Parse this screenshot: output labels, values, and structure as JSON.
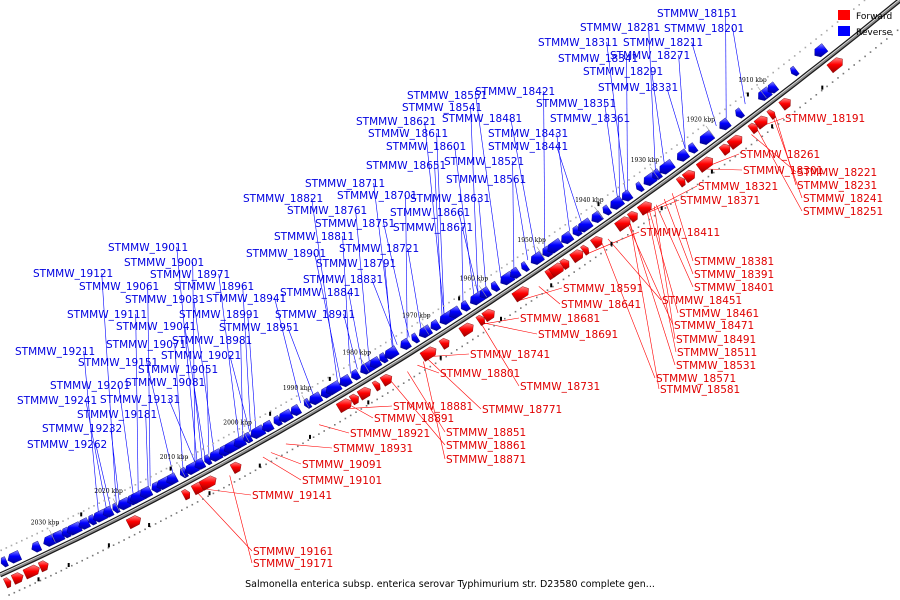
{
  "caption": "Salmonella enterica subsp. enterica serovar Typhimurium str. D23580 complete gen...",
  "legend": [
    {
      "label": "Forward",
      "color": "#ff0000"
    },
    {
      "label": "Reverse",
      "color": "#0000ff"
    }
  ],
  "ticks": [
    "1910 kbp",
    "1920 kbp",
    "1930 kbp",
    "1940 kbp",
    "1950 kbp",
    "1960 kbp",
    "1970 kbp",
    "1980 kbp",
    "1990 kbp",
    "2000 kbp",
    "2010 kbp",
    "2020 kbp",
    "2030 kbp"
  ],
  "reverse_labels": [
    "STMMW_18151",
    "STMMW_18281",
    "STMMW_18201",
    "STMMW_18311",
    "STMMW_18211",
    "STMMW_18341",
    "STMMW_18271",
    "STMMW_18291",
    "STMMW_18331",
    "STMMW_18551",
    "STMMW_18421",
    "STMMW_18541",
    "STMMW_18351",
    "STMMW_18621",
    "STMMW_18481",
    "STMMW_18361",
    "STMMW_18611",
    "STMMW_18431",
    "STMMW_18601",
    "STMMW_18441",
    "STMMW_18521",
    "STMMW_18651",
    "STMMW_18561",
    "STMMW_18711",
    "STMMW_18821",
    "STMMW_18701",
    "STMMW_18631",
    "STMMW_18761",
    "STMMW_18661",
    "STMMW_18751",
    "STMMW_18671",
    "STMMW_18811",
    "STMMW_18721",
    "STMMW_19011",
    "STMMW_18901",
    "STMMW_19001",
    "STMMW_18791",
    "STMMW_19121",
    "STMMW_18971",
    "STMMW_18831",
    "STMMW_19061",
    "STMMW_18961",
    "STMMW_18841",
    "STMMW_19031",
    "STMMW_18941",
    "STMMW_19111",
    "STMMW_18991",
    "STMMW_18911",
    "STMMW_19041",
    "STMMW_18951",
    "STMMW_18981",
    "STMMW_19071",
    "STMMW_19211",
    "STMMW_19021",
    "STMMW_19151",
    "STMMW_19051",
    "STMMW_19081",
    "STMMW_19201",
    "STMMW_19241",
    "STMMW_19131",
    "STMMW_19181",
    "STMMW_19232",
    "STMMW_19262"
  ],
  "forward_labels": [
    "STMMW_18191",
    "STMMW_18261",
    "STMMW_18301",
    "STMMW_18221",
    "STMMW_18321",
    "STMMW_18231",
    "STMMW_18241",
    "STMMW_18371",
    "STMMW_18251",
    "STMMW_18411",
    "STMMW_18381",
    "STMMW_18391",
    "STMMW_18401",
    "STMMW_18591",
    "STMMW_18451",
    "STMMW_18641",
    "STMMW_18461",
    "STMMW_18681",
    "STMMW_18471",
    "STMMW_18691",
    "STMMW_18491",
    "STMMW_18511",
    "STMMW_18741",
    "STMMW_18531",
    "STMMW_18571",
    "STMMW_18801",
    "STMMW_18581",
    "STMMW_18731",
    "STMMW_18881",
    "STMMW_18771",
    "STMMW_18891",
    "STMMW_18921",
    "STMMW_18851",
    "STMMW_18931",
    "STMMW_18861",
    "STMMW_18871",
    "STMMW_19091",
    "STMMW_19101",
    "STMMW_19141",
    "STMMW_19161",
    "STMMW_19171"
  ]
}
